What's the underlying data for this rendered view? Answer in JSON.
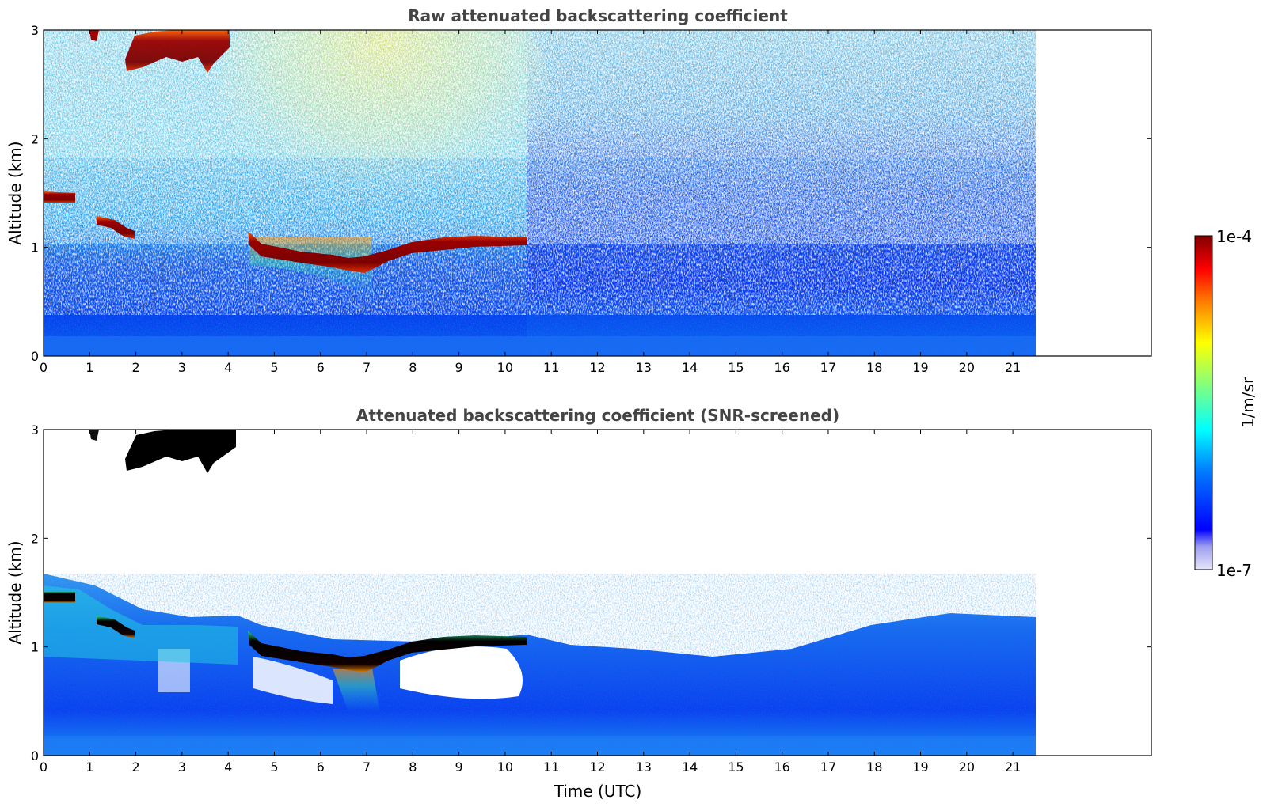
{
  "chart_data": [
    {
      "type": "heatmap",
      "title": "Raw attenuated backscattering coefficient",
      "xlabel": "",
      "ylabel": "Altitude (km)",
      "xlim": [
        0,
        24
      ],
      "ylim": [
        0,
        3
      ],
      "x_ticks": [
        0,
        1,
        2,
        3,
        4,
        5,
        6,
        7,
        8,
        9,
        10,
        11,
        12,
        13,
        14,
        15,
        16,
        17,
        18,
        19,
        20,
        21
      ],
      "y_ticks": [
        0,
        1,
        2,
        3
      ],
      "data_extent_hours": [
        0,
        21.45
      ],
      "features": [
        {
          "feature": "cloud layer",
          "start_h": 0.0,
          "end_h": 0.65,
          "altitude_km": 1.45
        },
        {
          "feature": "cloud layer",
          "start_h": 1.15,
          "end_h": 1.9,
          "altitude_km": 1.2
        },
        {
          "feature": "cloud layer",
          "start_h": 4.4,
          "end_h": 10.5,
          "altitude_km": 0.95
        },
        {
          "feature": "upper cloud",
          "start_h": 1.0,
          "end_h": 4.0,
          "altitude_km": 2.8
        }
      ]
    },
    {
      "type": "heatmap",
      "title": "Attenuated backscattering coefficient (SNR-screened)",
      "xlabel": "Time (UTC)",
      "ylabel": "Altitude (km)",
      "xlim": [
        0,
        24
      ],
      "ylim": [
        0,
        3
      ],
      "x_ticks": [
        0,
        1,
        2,
        3,
        4,
        5,
        6,
        7,
        8,
        9,
        10,
        11,
        12,
        13,
        14,
        15,
        16,
        17,
        18,
        19,
        20,
        21
      ],
      "y_ticks": [
        0,
        1,
        2,
        3
      ],
      "data_extent_hours": [
        0,
        21.45
      ]
    }
  ],
  "colorbar": {
    "label": "1/m/sr",
    "min_label": "1e-7",
    "max_label": "1e-4",
    "colormap": "jet",
    "colors": [
      "#e6e6f8",
      "#9c9cf0",
      "#0000ff",
      "#0080ff",
      "#00ffff",
      "#80ff80",
      "#ffff00",
      "#ff8000",
      "#ff0000",
      "#800000"
    ]
  }
}
